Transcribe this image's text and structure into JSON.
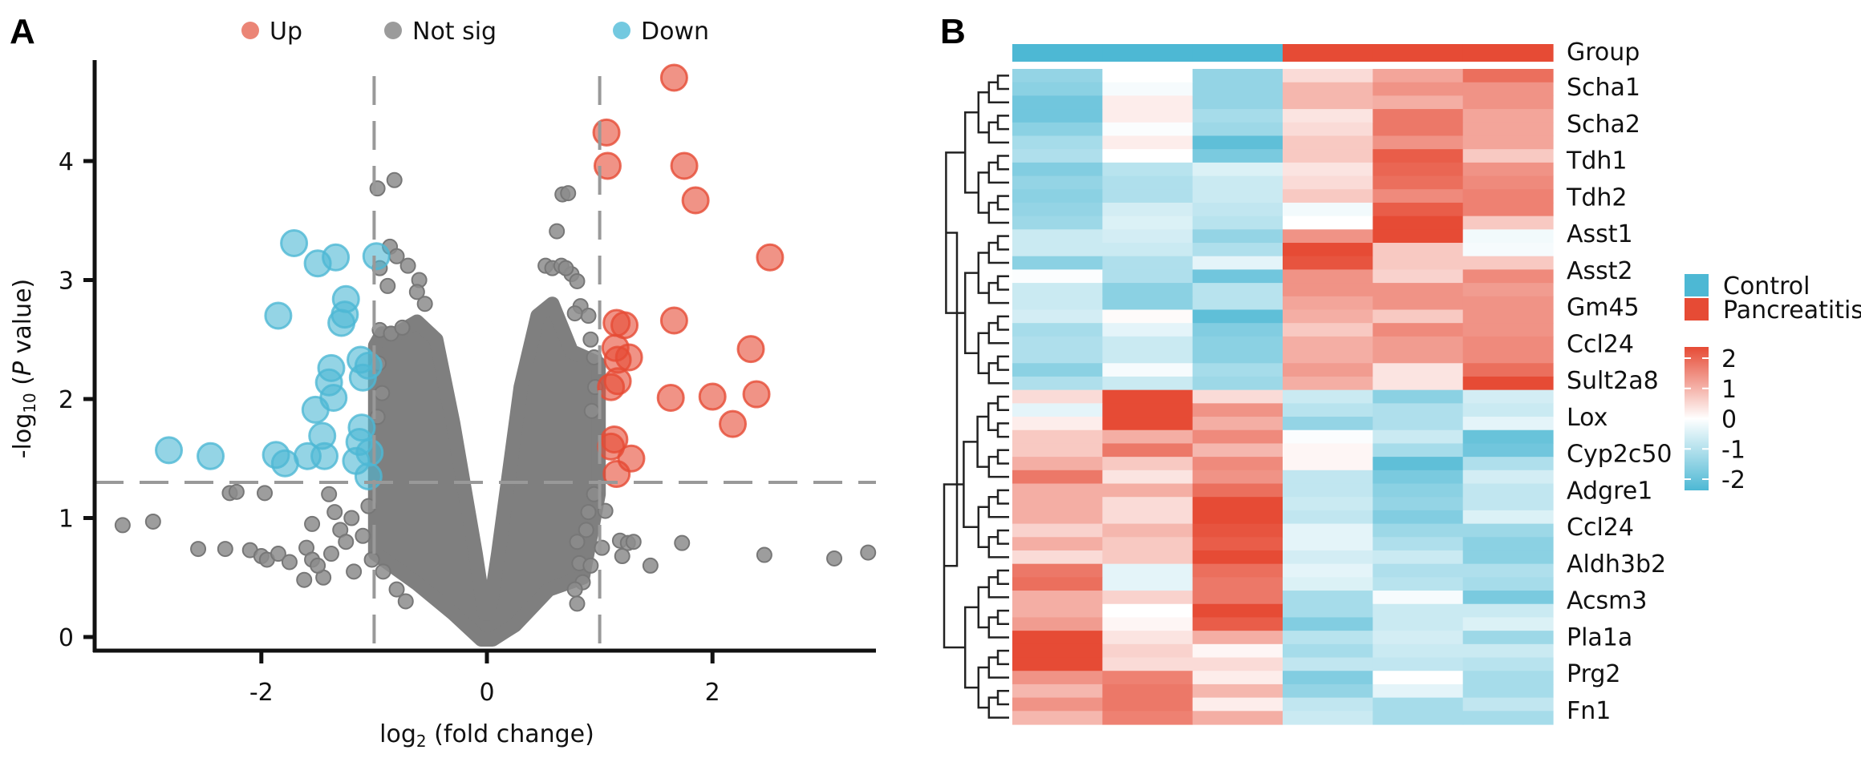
{
  "panels": {
    "a_label": "A",
    "b_label": "B"
  },
  "chart_data": [
    {
      "type": "scatter",
      "name": "volcano-plot",
      "title": "",
      "xlabel": "log2 (fold change)",
      "xlabel_main": "log",
      "xlabel_sub": "2",
      "xlabel_rest": " (fold change)",
      "ylabel_main": "-log",
      "ylabel_sub": "10",
      "ylabel_rest_open": " (",
      "ylabel_italic": "P",
      "ylabel_rest_close": " value)",
      "xlim": [
        -3.4,
        3.5
      ],
      "ylim": [
        -0.1,
        4.85
      ],
      "xticks": [
        -2,
        0,
        2
      ],
      "xtick_labels": [
        "-2",
        "0",
        "2"
      ],
      "yticks": [
        0,
        1,
        2,
        3,
        4
      ],
      "ytick_labels": [
        "0",
        "1",
        "2",
        "3",
        "4"
      ],
      "grid": false,
      "thresholds": {
        "log2fc": [
          -1,
          1
        ],
        "neg_log10_p": 1.3
      },
      "legend": {
        "position": "top",
        "entries": [
          {
            "label": "Up",
            "color": "#e8705e"
          },
          {
            "label": "Not sig",
            "color": "#8a8a8a"
          },
          {
            "label": "Down",
            "color": "#5bc0db"
          }
        ]
      },
      "series": [
        {
          "name": "Up",
          "color": "#e64b35",
          "points": [
            [
              1.66,
              4.7
            ],
            [
              1.06,
              4.24
            ],
            [
              1.07,
              3.96
            ],
            [
              1.75,
              3.96
            ],
            [
              1.85,
              3.67
            ],
            [
              2.51,
              3.19
            ],
            [
              1.66,
              2.66
            ],
            [
              1.15,
              2.64
            ],
            [
              1.22,
              2.62
            ],
            [
              1.14,
              2.43
            ],
            [
              1.26,
              2.35
            ],
            [
              1.16,
              2.33
            ],
            [
              1.16,
              2.15
            ],
            [
              1.1,
              2.1
            ],
            [
              1.63,
              2.01
            ],
            [
              2.0,
              2.02
            ],
            [
              2.39,
              2.04
            ],
            [
              2.34,
              2.42
            ],
            [
              2.18,
              1.79
            ],
            [
              1.13,
              1.66
            ],
            [
              1.1,
              1.6
            ],
            [
              1.28,
              1.5
            ],
            [
              1.15,
              1.37
            ]
          ]
        },
        {
          "name": "Not sig",
          "color": "#7f7f7f",
          "cloud_envelope": [
            [
              -0.99,
              2.45
            ],
            [
              -0.93,
              2.55
            ],
            [
              -0.8,
              2.55
            ],
            [
              -0.62,
              2.65
            ],
            [
              -0.45,
              2.5
            ],
            [
              -0.3,
              1.8
            ],
            [
              -0.1,
              0.7
            ],
            [
              -0.02,
              0.2
            ],
            [
              0.02,
              0.2
            ],
            [
              0.1,
              0.7
            ],
            [
              0.3,
              2.1
            ],
            [
              0.45,
              2.7
            ],
            [
              0.58,
              2.8
            ],
            [
              0.75,
              2.4
            ],
            [
              0.99,
              2.3
            ],
            [
              0.99,
              1.2
            ],
            [
              0.85,
              0.5
            ],
            [
              0.55,
              0.4
            ],
            [
              0.25,
              0.1
            ],
            [
              0.05,
              -0.02
            ],
            [
              -0.05,
              -0.02
            ],
            [
              -0.3,
              0.2
            ],
            [
              -0.62,
              0.45
            ],
            [
              -0.99,
              0.7
            ]
          ],
          "points": [
            [
              -0.97,
              3.77
            ],
            [
              -0.82,
              3.84
            ],
            [
              0.67,
              3.72
            ],
            [
              0.72,
              3.73
            ],
            [
              0.62,
              3.41
            ],
            [
              -0.86,
              3.28
            ],
            [
              -0.8,
              3.2
            ],
            [
              -0.7,
              3.12
            ],
            [
              -0.6,
              3.0
            ],
            [
              -0.95,
              3.1
            ],
            [
              -0.88,
              2.95
            ],
            [
              0.52,
              3.12
            ],
            [
              0.58,
              3.1
            ],
            [
              0.66,
              3.12
            ],
            [
              0.75,
              3.05
            ],
            [
              0.8,
              2.99
            ],
            [
              0.7,
              3.1
            ],
            [
              0.83,
              2.78
            ],
            [
              0.9,
              2.7
            ],
            [
              0.78,
              2.72
            ],
            [
              -0.95,
              2.58
            ],
            [
              -0.85,
              2.55
            ],
            [
              -0.75,
              2.6
            ],
            [
              -0.62,
              2.9
            ],
            [
              -0.55,
              2.8
            ],
            [
              0.92,
              2.5
            ],
            [
              0.95,
              2.35
            ],
            [
              0.96,
              2.1
            ],
            [
              0.93,
              1.9
            ],
            [
              -0.96,
              2.3
            ],
            [
              -0.93,
              2.05
            ],
            [
              -0.97,
              1.85
            ],
            [
              -2.28,
              1.21
            ],
            [
              -2.22,
              1.22
            ],
            [
              -1.97,
              1.21
            ],
            [
              -3.23,
              0.94
            ],
            [
              -2.96,
              0.97
            ],
            [
              -2.56,
              0.74
            ],
            [
              -2.32,
              0.74
            ],
            [
              -2.1,
              0.73
            ],
            [
              -2.0,
              0.68
            ],
            [
              -1.95,
              0.65
            ],
            [
              -1.85,
              0.7
            ],
            [
              -1.75,
              0.63
            ],
            [
              -1.6,
              0.75
            ],
            [
              -1.55,
              0.65
            ],
            [
              -1.55,
              0.95
            ],
            [
              -1.4,
              1.2
            ],
            [
              -1.35,
              1.05
            ],
            [
              -1.3,
              0.9
            ],
            [
              -1.25,
              0.8
            ],
            [
              -1.2,
              1.0
            ],
            [
              -1.45,
              0.5
            ],
            [
              -1.5,
              0.6
            ],
            [
              -1.38,
              0.7
            ],
            [
              -1.1,
              0.85
            ],
            [
              -1.05,
              1.1
            ],
            [
              -1.02,
              0.65
            ],
            [
              -0.92,
              0.55
            ],
            [
              -0.8,
              0.4
            ],
            [
              -0.72,
              0.3
            ],
            [
              0.8,
              0.8
            ],
            [
              0.82,
              0.62
            ],
            [
              0.85,
              0.46
            ],
            [
              0.78,
              0.4
            ],
            [
              0.8,
              0.28
            ],
            [
              0.9,
              1.05
            ],
            [
              0.95,
              1.2
            ],
            [
              1.05,
              1.06
            ],
            [
              1.18,
              0.81
            ],
            [
              1.25,
              0.79
            ],
            [
              1.3,
              0.8
            ],
            [
              1.2,
              0.68
            ],
            [
              1.45,
              0.6
            ],
            [
              1.73,
              0.79
            ],
            [
              2.46,
              0.69
            ],
            [
              3.08,
              0.66
            ],
            [
              3.38,
              0.71
            ],
            [
              1.02,
              0.75
            ],
            [
              0.92,
              0.6
            ],
            [
              0.88,
              0.9
            ],
            [
              -1.62,
              0.48
            ],
            [
              -1.18,
              0.55
            ]
          ]
        },
        {
          "name": "Down",
          "color": "#4db8d4",
          "points": [
            [
              -1.71,
              3.31
            ],
            [
              -1.5,
              3.14
            ],
            [
              -1.34,
              3.19
            ],
            [
              -0.98,
              3.2
            ],
            [
              -1.25,
              2.84
            ],
            [
              -1.26,
              2.71
            ],
            [
              -1.29,
              2.64
            ],
            [
              -1.85,
              2.7
            ],
            [
              -1.38,
              2.26
            ],
            [
              -1.4,
              2.14
            ],
            [
              -1.36,
              2.01
            ],
            [
              -1.52,
              1.91
            ],
            [
              -1.46,
              1.69
            ],
            [
              -2.82,
              1.57
            ],
            [
              -2.45,
              1.52
            ],
            [
              -1.87,
              1.53
            ],
            [
              -1.79,
              1.46
            ],
            [
              -1.59,
              1.52
            ],
            [
              -1.44,
              1.52
            ],
            [
              -1.12,
              2.33
            ],
            [
              -1.1,
              2.18
            ],
            [
              -1.13,
              1.64
            ],
            [
              -1.11,
              1.76
            ],
            [
              -1.16,
              1.48
            ],
            [
              -1.05,
              2.28
            ],
            [
              -1.04,
              1.55
            ],
            [
              -1.05,
              1.35
            ]
          ]
        }
      ]
    },
    {
      "type": "heatmap",
      "name": "expression-heatmap",
      "group_annotation": {
        "label": "Group",
        "columns": [
          "Control",
          "Control",
          "Control",
          "Pancreatitis",
          "Pancreatitis",
          "Pancreatitis"
        ],
        "colors": {
          "Control": "#4db8d4",
          "Pancreatitis": "#e64b35"
        }
      },
      "legend": {
        "groups": [
          {
            "label": "Control",
            "color": "#4db8d4"
          },
          {
            "label": "Pancreatitis",
            "color": "#e64b35"
          }
        ],
        "colorbar": {
          "min": -2,
          "max": 2,
          "ticks": [
            "2",
            "1",
            "0",
            "-1",
            "-2"
          ],
          "low_color": "#4db8d4",
          "mid_color": "#ffffff",
          "high_color": "#e64b35"
        }
      },
      "row_labels": [
        "Scha1",
        "Scha2",
        "Tdh1",
        "Tdh2",
        "Asst1",
        "Asst2",
        "Gm45",
        "Ccl24",
        "Sult2a8",
        "Lox",
        "Cyp2c50",
        "Adgre1",
        "Ccl24",
        "Aldh3b2",
        "Acsm3",
        "Pla1a",
        "Prg2",
        "Fn1"
      ],
      "row_clusters": [
        24,
        25
      ],
      "values": [
        [
          -1.2,
          0.0,
          -1.2,
          0.4,
          1.0,
          1.6
        ],
        [
          -1.3,
          -0.1,
          -1.2,
          0.8,
          1.2,
          1.2
        ],
        [
          -1.6,
          0.2,
          -1.2,
          0.8,
          0.9,
          1.2
        ],
        [
          -1.6,
          0.2,
          -1.0,
          0.3,
          1.5,
          1.0
        ],
        [
          -1.3,
          -0.05,
          -1.1,
          0.4,
          1.5,
          1.0
        ],
        [
          -1.0,
          0.2,
          -1.8,
          0.6,
          1.2,
          1.0
        ],
        [
          -0.9,
          0.0,
          -1.5,
          0.6,
          1.8,
          0.6
        ],
        [
          -1.4,
          -0.8,
          -0.4,
          0.3,
          1.7,
          1.2
        ],
        [
          -1.2,
          -0.9,
          -0.6,
          0.4,
          1.6,
          1.3
        ],
        [
          -1.3,
          -0.9,
          -0.6,
          0.6,
          1.3,
          1.4
        ],
        [
          -1.2,
          -0.5,
          -0.7,
          -0.15,
          1.8,
          1.4
        ],
        [
          -1.1,
          -0.4,
          -0.8,
          0.0,
          2.0,
          0.6
        ],
        [
          -0.6,
          -0.5,
          -1.2,
          1.2,
          2.0,
          -0.15
        ],
        [
          -0.6,
          -0.6,
          -0.9,
          2.0,
          0.6,
          -0.1
        ],
        [
          -1.3,
          -0.9,
          -0.3,
          1.9,
          0.6,
          0.6
        ],
        [
          -0.05,
          -0.9,
          -1.6,
          1.2,
          0.5,
          1.3
        ],
        [
          -0.6,
          -1.3,
          -0.8,
          1.2,
          1.2,
          1.1
        ],
        [
          -0.6,
          -1.3,
          -0.8,
          1.0,
          1.2,
          1.2
        ],
        [
          -0.5,
          0.05,
          -1.8,
          0.9,
          0.6,
          1.2
        ],
        [
          -1.0,
          -0.3,
          -1.4,
          0.6,
          1.3,
          1.2
        ],
        [
          -0.9,
          -0.6,
          -1.3,
          0.9,
          1.1,
          1.3
        ],
        [
          -0.9,
          -0.6,
          -1.3,
          0.9,
          1.1,
          1.3
        ],
        [
          -1.3,
          -0.1,
          -1.0,
          1.1,
          0.3,
          1.6
        ],
        [
          -0.9,
          -0.6,
          -1.1,
          0.9,
          0.3,
          2.0
        ],
        [
          0.4,
          2.0,
          0.4,
          -0.6,
          -1.3,
          -0.5
        ],
        [
          -0.3,
          2.0,
          1.2,
          -0.8,
          -0.9,
          -0.6
        ],
        [
          0.2,
          2.0,
          0.9,
          -1.2,
          -0.9,
          -0.3
        ],
        [
          0.6,
          0.9,
          1.3,
          -0.05,
          -0.6,
          -1.7
        ],
        [
          0.6,
          1.5,
          0.8,
          0.1,
          -1.0,
          -1.6
        ],
        [
          0.9,
          0.6,
          1.3,
          0.1,
          -1.8,
          -0.9
        ],
        [
          1.5,
          0.3,
          1.2,
          -0.7,
          -1.5,
          -0.5
        ],
        [
          0.9,
          0.9,
          1.6,
          -0.7,
          -1.3,
          -0.7
        ],
        [
          0.9,
          0.4,
          2.0,
          -0.6,
          -1.2,
          -0.7
        ],
        [
          0.9,
          0.4,
          2.0,
          -0.7,
          -1.4,
          -0.4
        ],
        [
          0.5,
          0.8,
          1.9,
          -0.3,
          -1.1,
          -1.1
        ],
        [
          0.9,
          0.6,
          1.8,
          -0.3,
          -0.9,
          -1.3
        ],
        [
          0.4,
          0.6,
          2.0,
          -0.5,
          -0.6,
          -1.3
        ],
        [
          1.5,
          -0.3,
          1.6,
          -0.3,
          -0.9,
          -0.9
        ],
        [
          1.6,
          -0.3,
          1.5,
          -0.4,
          -0.8,
          -1.0
        ],
        [
          0.9,
          0.5,
          1.5,
          -1.0,
          -0.1,
          -1.5
        ],
        [
          0.9,
          0.0,
          2.0,
          -1.0,
          -0.6,
          -0.6
        ],
        [
          1.1,
          0.1,
          1.8,
          -1.4,
          -0.6,
          -0.4
        ],
        [
          2.0,
          0.3,
          0.9,
          -0.8,
          -0.5,
          -1.1
        ],
        [
          2.0,
          0.5,
          0.1,
          -1.0,
          -0.6,
          -0.6
        ],
        [
          2.0,
          0.4,
          0.4,
          -0.7,
          -0.7,
          -0.8
        ],
        [
          1.2,
          1.4,
          0.2,
          -1.4,
          0.0,
          -1.0
        ],
        [
          0.8,
          1.5,
          0.8,
          -1.2,
          -0.3,
          -1.0
        ],
        [
          1.2,
          1.5,
          0.2,
          -0.7,
          -1.0,
          -0.7
        ],
        [
          0.8,
          1.4,
          0.9,
          -0.6,
          -1.0,
          -1.0
        ]
      ]
    }
  ]
}
